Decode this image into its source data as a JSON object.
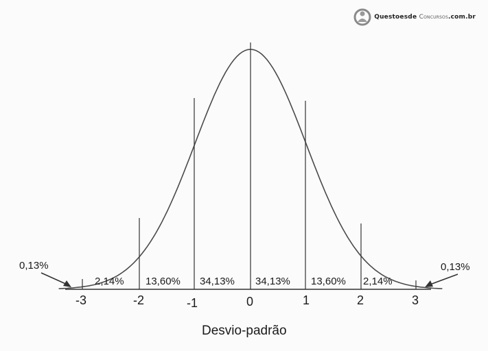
{
  "watermark": {
    "brand_questoes": "Questoes",
    "brand_de": "de",
    "brand_concursos": "Concursos",
    "brand_domain": ".com.br",
    "icon": "person-in-circle-logo"
  },
  "diagram": {
    "axis_title": "Desvio-padrão",
    "ticks": [
      "-3",
      "-2",
      "-1",
      "0",
      "1",
      "2",
      "3"
    ],
    "region_percentages": [
      "2,14%",
      "13,60%",
      "34,13%",
      "34,13%",
      "13,60%",
      "2,14%"
    ],
    "tail_left_label": "0,13%",
    "tail_right_label": "0,13%",
    "curve_color": "#4a4a4a",
    "line_color": "#333333"
  }
}
